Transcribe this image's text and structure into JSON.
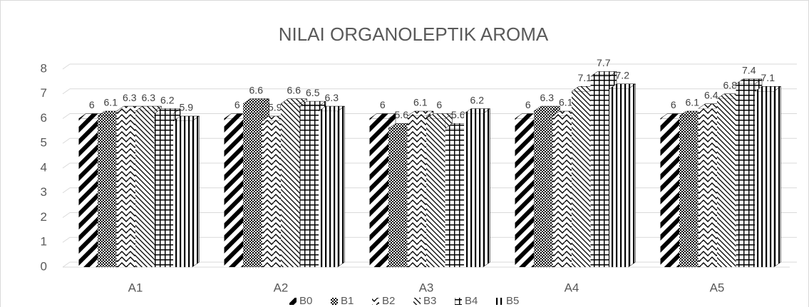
{
  "chart_data": {
    "type": "bar3d",
    "title": "NILAI ORGANOLEPTIK AROMA",
    "categories": [
      "A1",
      "A2",
      "A3",
      "A4",
      "A5"
    ],
    "series": [
      {
        "name": "B0",
        "color": "#000000",
        "pattern": "diagonal-wide",
        "values": [
          6,
          6,
          6,
          6,
          6
        ]
      },
      {
        "name": "B1",
        "color": "#000000",
        "pattern": "checker",
        "values": [
          6.1,
          6.6,
          5.6,
          6.3,
          6.1
        ]
      },
      {
        "name": "B2",
        "color": "#000000",
        "pattern": "wave",
        "values": [
          6.3,
          5.9,
          6.1,
          6.1,
          6.4
        ]
      },
      {
        "name": "B3",
        "color": "#000000",
        "pattern": "diagonal-thin",
        "values": [
          6.3,
          6.6,
          6,
          7.1,
          6.8
        ]
      },
      {
        "name": "B4",
        "color": "#000000",
        "pattern": "grid",
        "values": [
          6.2,
          6.5,
          5.6,
          7.7,
          7.4
        ]
      },
      {
        "name": "B5",
        "color": "#000000",
        "pattern": "vertical",
        "values": [
          5.9,
          6.3,
          6.2,
          7.2,
          7.1
        ]
      }
    ],
    "ylim": [
      0,
      8
    ],
    "yticks": [
      0,
      1,
      2,
      3,
      4,
      5,
      6,
      7,
      8
    ],
    "grid": true,
    "legend": "bottom"
  }
}
